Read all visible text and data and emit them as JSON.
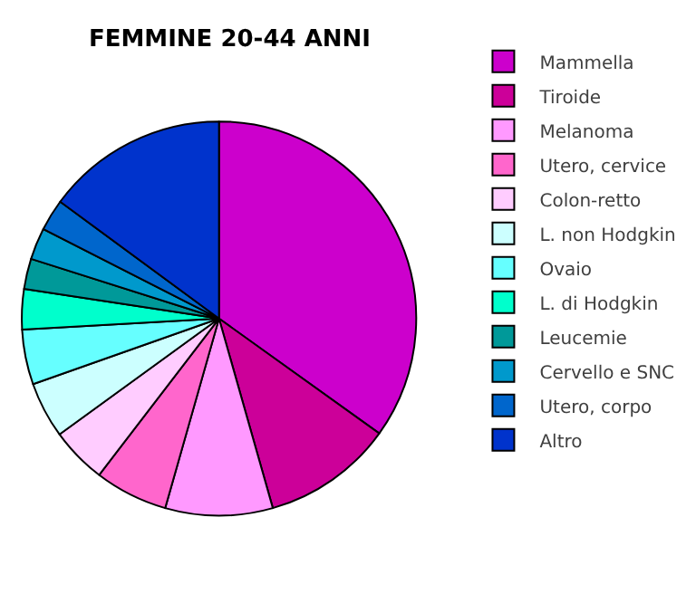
{
  "chart_data": {
    "type": "pie",
    "title": "FEMMINE 20-44 ANNI",
    "categories": [
      "Mammella",
      "Tiroide",
      "Melanoma",
      "Utero, cervice",
      "Colon-retto",
      "L. non Hodgkin",
      "Ovaio",
      "L. di Hodgkin",
      "Leucemie",
      "Cervello e SNC",
      "Utero, corpo",
      "Altro"
    ],
    "values": [
      34.9,
      10.7,
      8.8,
      6.0,
      4.6,
      4.6,
      4.5,
      3.3,
      2.5,
      2.6,
      2.6,
      14.9
    ],
    "colors": [
      "#cc00cc",
      "#cc0099",
      "#ff99ff",
      "#ff66cc",
      "#ffccff",
      "#ccffff",
      "#66ffff",
      "#00ffcc",
      "#009999",
      "#0099cc",
      "#0066cc",
      "#0033cc"
    ],
    "legend": "right"
  }
}
